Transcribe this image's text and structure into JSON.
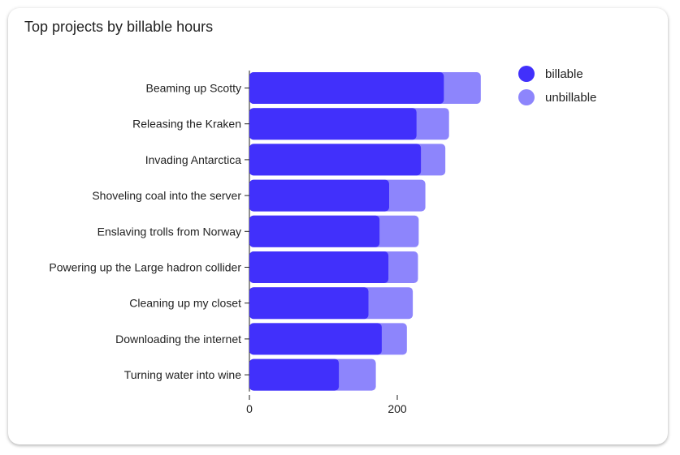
{
  "card": {
    "title": "Top projects by billable hours"
  },
  "chart_data": {
    "type": "bar",
    "orientation": "horizontal",
    "stacked": true,
    "title": "Top projects by billable hours",
    "categories": [
      "Beaming up Scotty",
      "Releasing the Kraken",
      "Invading Antarctica",
      "Shoveling coal into the server",
      "Enslaving trolls from Norway",
      "Powering up the Large hadron collider",
      "Cleaning up my closet",
      "Downloading the internet",
      "Turning water into wine"
    ],
    "series": [
      {
        "name": "billable",
        "color": "#4130fb",
        "values": [
          263,
          226,
          232,
          189,
          176,
          188,
          161,
          179,
          121
        ]
      },
      {
        "name": "unbillable",
        "color": "#8d85fc",
        "values": [
          50,
          44,
          33,
          49,
          53,
          40,
          60,
          34,
          50
        ]
      }
    ],
    "xaxis": {
      "ticks": [
        0,
        200
      ],
      "tick_labels": [
        "0",
        "200"
      ],
      "range": [
        0,
        340
      ]
    },
    "legend": {
      "placement": "top-right",
      "entries": [
        "billable",
        "unbillable"
      ]
    },
    "grid": false
  }
}
